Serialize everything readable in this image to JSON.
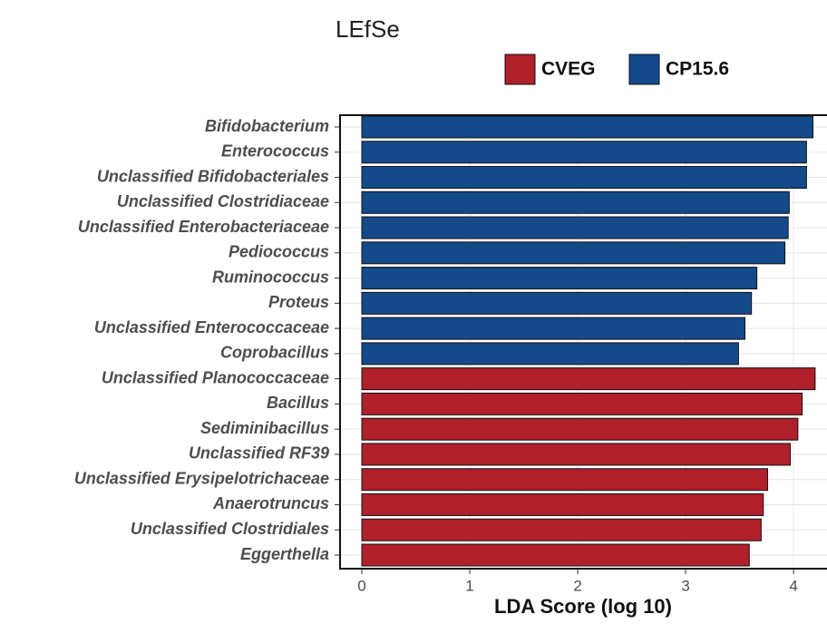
{
  "chart_data": {
    "type": "barh",
    "title": "LEfSe",
    "x_label": "LDA Score (log 10)",
    "categories": [
      "Bifidobacterium",
      "Enterococcus",
      "Unclassified Bifidobacteriales",
      "Unclassified Clostridiaceae",
      "Unclassified Enterobacteriaceae",
      "Pediococcus",
      "Ruminococcus",
      "Proteus",
      "Unclassified Enterococcaceae",
      "Coprobacillus",
      "Unclassified Planococcaceae",
      "Bacillus",
      "Sediminibacillus",
      "Unclassified RF39",
      "Unclassified Erysipelotrichaceae",
      "Anaerotruncus",
      "Unclassified Clostridiales",
      "Eggerthella"
    ],
    "series": [
      {
        "name": "CVEG",
        "color": "#b0202a",
        "values": [
          null,
          null,
          null,
          null,
          null,
          null,
          null,
          null,
          null,
          null,
          4.2,
          4.08,
          4.04,
          3.97,
          3.76,
          3.72,
          3.7,
          3.59
        ]
      },
      {
        "name": "CP15.6",
        "color": "#154a8a",
        "values": [
          4.18,
          4.12,
          4.12,
          3.96,
          3.95,
          3.92,
          3.66,
          3.61,
          3.55,
          3.49,
          null,
          null,
          null,
          null,
          null,
          null,
          null,
          null
        ]
      }
    ],
    "xlim": [
      0,
      4.31
    ],
    "xticks": [
      0,
      1,
      2,
      3,
      4
    ],
    "grid": true
  }
}
